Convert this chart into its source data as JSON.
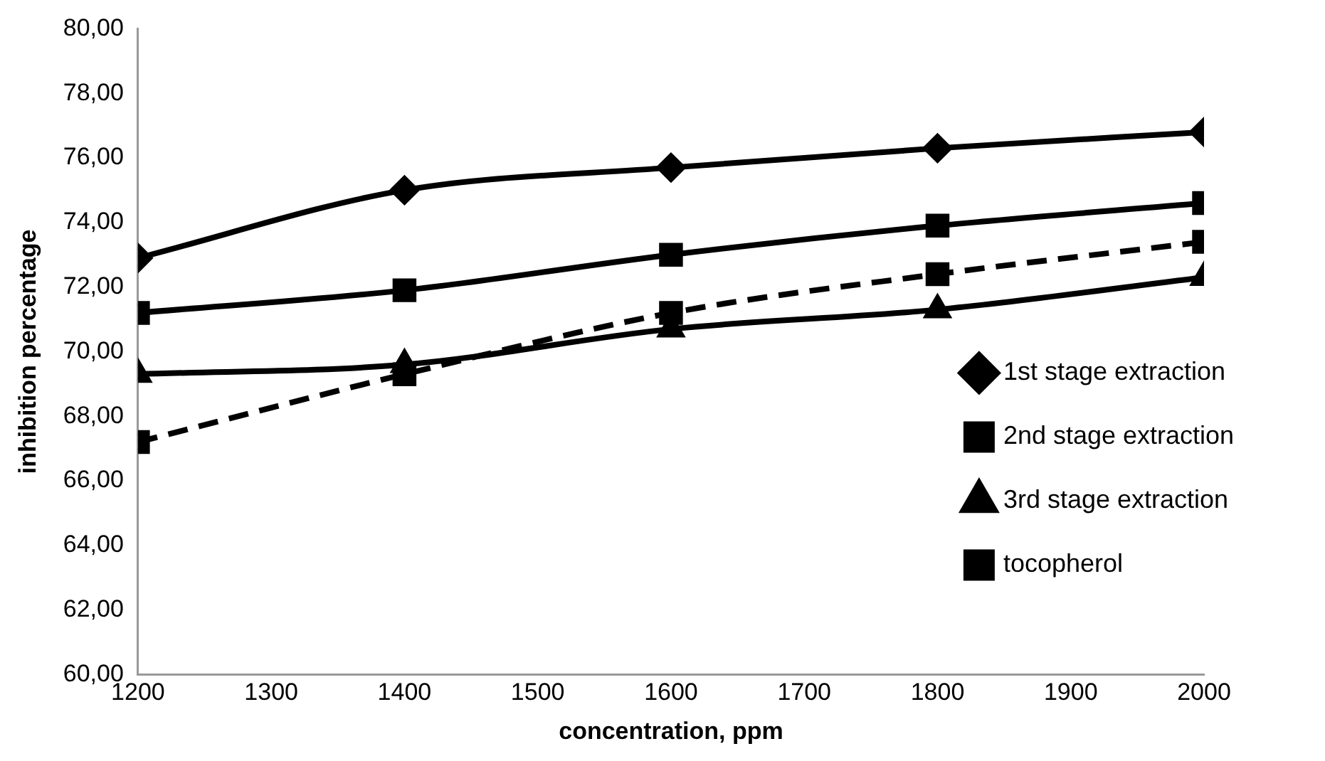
{
  "chart_data": {
    "type": "line",
    "xlabel": "concentration, ppm",
    "ylabel": "inhibition percentage",
    "x": [
      1200,
      1400,
      1600,
      1800,
      2000
    ],
    "xlim": [
      1200,
      2000
    ],
    "xticks": [
      1200,
      1300,
      1400,
      1500,
      1600,
      1700,
      1800,
      1900,
      2000
    ],
    "ylim": [
      60,
      80
    ],
    "yticks": [
      {
        "value": 60,
        "label": "60,00"
      },
      {
        "value": 62,
        "label": "62,00"
      },
      {
        "value": 64,
        "label": "64,00"
      },
      {
        "value": 66,
        "label": "66,00"
      },
      {
        "value": 68,
        "label": "68,00"
      },
      {
        "value": 70,
        "label": "70,00"
      },
      {
        "value": 72,
        "label": "72,00"
      },
      {
        "value": 74,
        "label": "74,00"
      },
      {
        "value": 76,
        "label": "76,00"
      },
      {
        "value": 78,
        "label": "78,00"
      },
      {
        "value": 80,
        "label": "80,00"
      }
    ],
    "grid": false,
    "legend": "bottom right",
    "series": [
      {
        "name": "1st stage extraction",
        "color": "#000000",
        "marker": "diamond",
        "line_style": "solid",
        "values": [
          72.9,
          75.0,
          75.7,
          76.3,
          76.8
        ]
      },
      {
        "name": "2nd stage extraction",
        "color": "#000000",
        "marker": "square",
        "line_style": "solid",
        "values": [
          71.2,
          71.9,
          73.0,
          73.9,
          74.6
        ]
      },
      {
        "name": "3rd stage extraction",
        "color": "#000000",
        "marker": "triangle",
        "line_style": "solid",
        "values": [
          69.3,
          69.6,
          70.7,
          71.3,
          72.3
        ]
      },
      {
        "name": "tocopherol",
        "color": "#000000",
        "marker": "square",
        "line_style": "dashed",
        "values": [
          67.2,
          69.3,
          71.2,
          72.4,
          73.4
        ]
      }
    ]
  }
}
